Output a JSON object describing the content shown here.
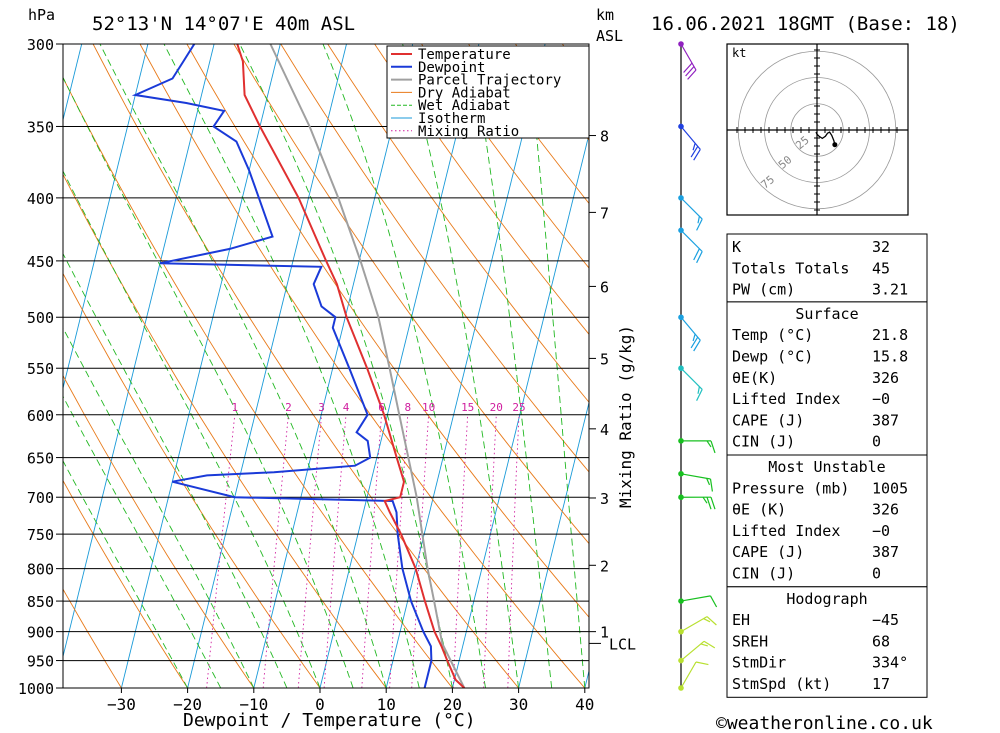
{
  "header": {
    "location": "52°13'N  14°07'E  40m  ASL",
    "datetime": "16.06.2021  18GMT  (Base: 18)",
    "pressure_unit": "hPa",
    "height_unit_1": "km",
    "height_unit_2": "ASL",
    "copyright": "©weatheronline.co.uk"
  },
  "colors": {
    "temperature": "#e03030",
    "dewpoint": "#1a3ad8",
    "parcel": "#a0a0a0",
    "dry_adiabat": "#e87a1a",
    "wet_adiabat": "#22b822",
    "isotherm": "#1a9ad8",
    "mixing_ratio": "#d020a0"
  },
  "chart_data": {
    "type": "line",
    "subtype": "skew-t log-p",
    "xlabel": "Dewpoint / Temperature (°C)",
    "y2label": "Mixing Ratio (g/kg)",
    "x_ticks": [
      -30,
      -20,
      -10,
      0,
      10,
      20,
      30,
      40
    ],
    "p_ticks": [
      300,
      350,
      400,
      450,
      500,
      550,
      600,
      650,
      700,
      750,
      800,
      850,
      900,
      950,
      1000
    ],
    "km_ticks": [
      {
        "label": "1",
        "p": 900
      },
      {
        "label": "2",
        "p": 795
      },
      {
        "label": "3",
        "p": 701
      },
      {
        "label": "4",
        "p": 616
      },
      {
        "label": "5",
        "p": 540
      },
      {
        "label": "6",
        "p": 472
      },
      {
        "label": "7",
        "p": 411
      },
      {
        "label": "8",
        "p": 356
      }
    ],
    "lcl_label": "LCL",
    "lcl_p": 920,
    "mixing_ratio_labels": [
      "1",
      "2",
      "3",
      "4",
      "6",
      "8",
      "10",
      "15",
      "20",
      "25"
    ],
    "mixing_ratio_values": [
      1,
      2,
      3,
      4,
      6,
      8,
      10,
      15,
      20,
      25
    ],
    "legend": [
      "Temperature",
      "Dewpoint",
      "Parcel Trajectory",
      "Dry Adiabat",
      "Wet Adiabat",
      "Isotherm",
      "Mixing Ratio"
    ],
    "legend_position": "top-right",
    "series": [
      {
        "name": "Temperature",
        "points": [
          [
            1000,
            21.8
          ],
          [
            985,
            20.2
          ],
          [
            950,
            18.2
          ],
          [
            925,
            16.8
          ],
          [
            900,
            15.2
          ],
          [
            850,
            12.6
          ],
          [
            800,
            10.0
          ],
          [
            750,
            6.5
          ],
          [
            720,
            4.0
          ],
          [
            705,
            2.8
          ],
          [
            700,
            5.0
          ],
          [
            680,
            5.0
          ],
          [
            650,
            3.0
          ],
          [
            600,
            -0.5
          ],
          [
            550,
            -4.8
          ],
          [
            500,
            -9.8
          ],
          [
            470,
            -12.5
          ],
          [
            450,
            -15.0
          ],
          [
            400,
            -21.5
          ],
          [
            350,
            -30.0
          ],
          [
            330,
            -33.5
          ],
          [
            310,
            -35.0
          ],
          [
            300,
            -36.5
          ]
        ]
      },
      {
        "name": "Dewpoint",
        "points": [
          [
            1000,
            15.8
          ],
          [
            950,
            15.8
          ],
          [
            925,
            15.2
          ],
          [
            900,
            13.5
          ],
          [
            850,
            10.5
          ],
          [
            800,
            8.0
          ],
          [
            750,
            6.0
          ],
          [
            720,
            5.0
          ],
          [
            705,
            4.0
          ],
          [
            700,
            -20.0
          ],
          [
            680,
            -30.0
          ],
          [
            672,
            -25.0
          ],
          [
            668,
            -15.0
          ],
          [
            660,
            -3.0
          ],
          [
            650,
            -1.0
          ],
          [
            630,
            -2.0
          ],
          [
            620,
            -4.0
          ],
          [
            600,
            -3.0
          ],
          [
            550,
            -7.5
          ],
          [
            510,
            -11.5
          ],
          [
            500,
            -11.5
          ],
          [
            490,
            -14.0
          ],
          [
            470,
            -16.0
          ],
          [
            455,
            -15.5
          ],
          [
            452,
            -40.0
          ],
          [
            440,
            -30.0
          ],
          [
            430,
            -24.0
          ],
          [
            400,
            -27.5
          ],
          [
            380,
            -30.0
          ],
          [
            360,
            -33.0
          ],
          [
            350,
            -37.0
          ],
          [
            340,
            -36.0
          ],
          [
            335,
            -42.0
          ],
          [
            330,
            -50.0
          ],
          [
            320,
            -45.0
          ],
          [
            310,
            -44.0
          ],
          [
            300,
            -43.0
          ]
        ]
      },
      {
        "name": "Parcel Trajectory",
        "points": [
          [
            1000,
            21.8
          ],
          [
            920,
            16.8
          ],
          [
            850,
            14.0
          ],
          [
            800,
            11.8
          ],
          [
            700,
            7.5
          ],
          [
            600,
            1.8
          ],
          [
            550,
            -1.4
          ],
          [
            500,
            -5.0
          ],
          [
            450,
            -9.8
          ],
          [
            400,
            -15.5
          ],
          [
            350,
            -22.5
          ],
          [
            300,
            -31.5
          ]
        ]
      }
    ],
    "wind_barbs": [
      {
        "p": 1000,
        "speed_kt": 10,
        "dir": 210
      },
      {
        "p": 950,
        "speed_kt": 15,
        "dir": 230
      },
      {
        "p": 900,
        "speed_kt": 15,
        "dir": 240
      },
      {
        "p": 850,
        "speed_kt": 10,
        "dir": 260
      },
      {
        "p": 700,
        "speed_kt": 25,
        "dir": 270
      },
      {
        "p": 670,
        "speed_kt": 15,
        "dir": 280
      },
      {
        "p": 630,
        "speed_kt": 15,
        "dir": 270
      },
      {
        "p": 550,
        "speed_kt": 15,
        "dir": 315
      },
      {
        "p": 500,
        "speed_kt": 25,
        "dir": 320
      },
      {
        "p": 425,
        "speed_kt": 20,
        "dir": 315
      },
      {
        "p": 400,
        "speed_kt": 15,
        "dir": 315
      },
      {
        "p": 350,
        "speed_kt": 25,
        "dir": 320
      },
      {
        "p": 300,
        "speed_kt": 30,
        "dir": 330
      }
    ],
    "hodograph": {
      "unit": "kt",
      "ring_labels": [
        "25",
        "50",
        "75"
      ],
      "points": [
        [
          -1,
          -2
        ],
        [
          0,
          -4
        ],
        [
          2,
          -6
        ],
        [
          5,
          -8
        ],
        [
          8,
          -6
        ],
        [
          10,
          -3
        ],
        [
          12,
          -2
        ],
        [
          14,
          -5
        ],
        [
          16,
          -10
        ],
        [
          17,
          -14
        ]
      ]
    }
  },
  "indices": {
    "rows1": [
      {
        "label": "K",
        "value": "32"
      },
      {
        "label": "Totals Totals",
        "value": "45"
      },
      {
        "label": "PW (cm)",
        "value": "3.21"
      }
    ],
    "surface_title": "Surface",
    "surface_rows": [
      {
        "label": "Temp (°C)",
        "value": "21.8"
      },
      {
        "label": "Dewp (°C)",
        "value": "15.8"
      },
      {
        "label": "θE(K)",
        "value": "326"
      },
      {
        "label": "Lifted Index",
        "value": "−0"
      },
      {
        "label": "CAPE (J)",
        "value": "387"
      },
      {
        "label": "CIN (J)",
        "value": "0"
      }
    ],
    "mu_title": "Most Unstable",
    "mu_rows": [
      {
        "label": "Pressure (mb)",
        "value": "1005"
      },
      {
        "label": "θE (K)",
        "value": "326"
      },
      {
        "label": "Lifted Index",
        "value": "−0"
      },
      {
        "label": "CAPE (J)",
        "value": "387"
      },
      {
        "label": "CIN (J)",
        "value": "0"
      }
    ],
    "hodo_title": "Hodograph",
    "hodo_rows": [
      {
        "label": "EH",
        "value": "−45"
      },
      {
        "label": "SREH",
        "value": "68"
      },
      {
        "label": "StmDir",
        "value": "334°"
      },
      {
        "label": "StmSpd (kt)",
        "value": "17"
      }
    ]
  }
}
